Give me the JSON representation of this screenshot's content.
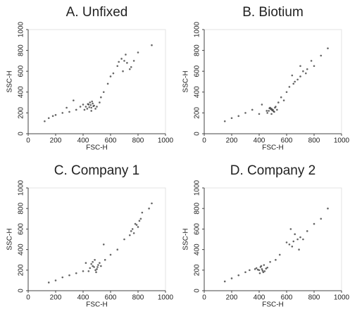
{
  "chart_data": [
    {
      "type": "scatter",
      "title": "A. Unfixed",
      "x_label": "FSC-H",
      "y_label": "SSC-H",
      "color": "#333333",
      "xlim": [
        0,
        1000
      ],
      "ylim": [
        0,
        1000
      ],
      "xticks": [
        0,
        200,
        400,
        600,
        800,
        1000
      ],
      "yticks": [
        0,
        200,
        400,
        600,
        800,
        1000
      ],
      "x": [
        420,
        440,
        460,
        480,
        450,
        430,
        470,
        500,
        410,
        455,
        445,
        465,
        490,
        435,
        475,
        520,
        400,
        460,
        650,
        700,
        720,
        680,
        750,
        690,
        710,
        660,
        740,
        770,
        620,
        600,
        150,
        200,
        250,
        300,
        350,
        120,
        180,
        280,
        380,
        550,
        580,
        800,
        900,
        530,
        330
      ],
      "y": [
        260,
        280,
        250,
        270,
        300,
        240,
        290,
        260,
        230,
        275,
        255,
        310,
        240,
        285,
        265,
        300,
        280,
        220,
        650,
        700,
        680,
        720,
        640,
        600,
        760,
        690,
        620,
        700,
        580,
        550,
        150,
        180,
        200,
        210,
        230,
        120,
        170,
        250,
        260,
        400,
        480,
        780,
        850,
        350,
        320
      ]
    },
    {
      "type": "scatter",
      "title": "B. Biotium",
      "x_label": "FSC-H",
      "y_label": "SSC-H",
      "color": "#333333",
      "xlim": [
        0,
        1000
      ],
      "ylim": [
        0,
        1000
      ],
      "xticks": [
        0,
        200,
        400,
        600,
        800,
        1000
      ],
      "yticks": [
        0,
        200,
        400,
        600,
        800,
        1000
      ],
      "x": [
        470,
        490,
        510,
        480,
        500,
        460,
        520,
        495,
        485,
        505,
        475,
        530,
        455,
        515,
        490,
        600,
        650,
        700,
        720,
        750,
        680,
        780,
        620,
        660,
        740,
        800,
        850,
        560,
        580,
        150,
        200,
        250,
        300,
        350,
        400,
        420,
        900,
        700,
        640,
        540
      ],
      "y": [
        220,
        240,
        210,
        250,
        230,
        200,
        260,
        225,
        235,
        215,
        245,
        230,
        220,
        250,
        190,
        400,
        480,
        550,
        600,
        620,
        520,
        700,
        450,
        500,
        580,
        650,
        750,
        350,
        320,
        120,
        150,
        170,
        200,
        230,
        190,
        280,
        820,
        650,
        560,
        300
      ]
    },
    {
      "type": "scatter",
      "title": "C. Company 1",
      "x_label": "FSC-H",
      "y_label": "SSC-H",
      "color": "#333333",
      "xlim": [
        0,
        1000
      ],
      "ylim": [
        0,
        1000
      ],
      "xticks": [
        0,
        200,
        400,
        600,
        800,
        1000
      ],
      "yticks": [
        0,
        200,
        400,
        600,
        800,
        1000
      ],
      "x": [
        450,
        470,
        490,
        510,
        480,
        460,
        500,
        520,
        440,
        485,
        495,
        530,
        470,
        505,
        760,
        780,
        800,
        820,
        750,
        790,
        770,
        810,
        740,
        830,
        700,
        650,
        600,
        560,
        150,
        200,
        250,
        300,
        350,
        400,
        880,
        900,
        550,
        420
      ],
      "y": [
        220,
        240,
        200,
        250,
        230,
        260,
        210,
        270,
        190,
        300,
        180,
        240,
        280,
        230,
        600,
        650,
        620,
        700,
        580,
        640,
        560,
        680,
        540,
        760,
        500,
        400,
        350,
        300,
        80,
        100,
        130,
        150,
        170,
        190,
        800,
        850,
        450,
        270
      ]
    },
    {
      "type": "scatter",
      "title": "D. Company 2",
      "x_label": "FSC-H",
      "y_label": "SSC-H",
      "color": "#333333",
      "xlim": [
        0,
        1000
      ],
      "ylim": [
        0,
        1000
      ],
      "xticks": [
        0,
        200,
        400,
        600,
        800,
        1000
      ],
      "yticks": [
        0,
        200,
        400,
        600,
        800,
        1000
      ],
      "x": [
        400,
        420,
        440,
        380,
        410,
        430,
        450,
        390,
        415,
        425,
        460,
        370,
        405,
        435,
        620,
        650,
        680,
        700,
        640,
        660,
        600,
        720,
        690,
        630,
        550,
        520,
        150,
        200,
        250,
        300,
        330,
        480,
        800,
        850,
        750,
        900
      ],
      "y": [
        200,
        210,
        190,
        220,
        230,
        180,
        215,
        205,
        240,
        195,
        225,
        210,
        170,
        250,
        450,
        480,
        500,
        520,
        430,
        550,
        470,
        500,
        400,
        600,
        350,
        300,
        90,
        120,
        150,
        180,
        200,
        280,
        650,
        700,
        580,
        800
      ]
    }
  ]
}
